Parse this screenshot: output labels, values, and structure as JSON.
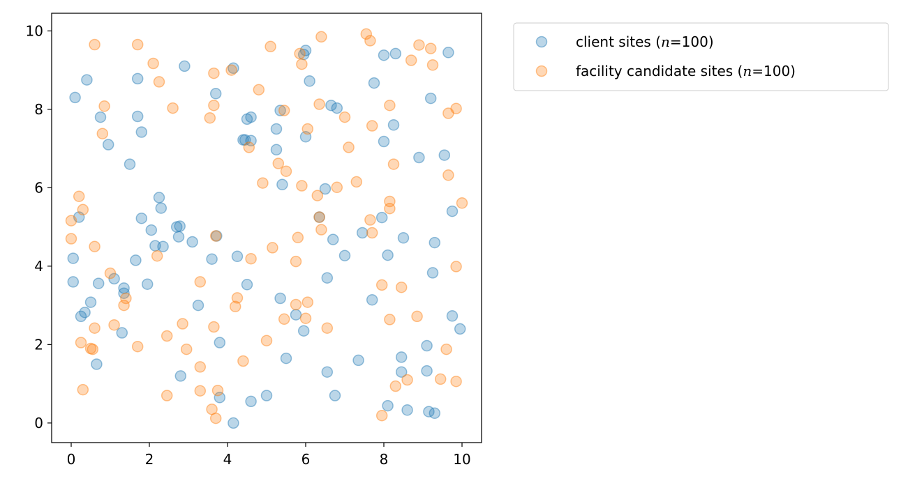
{
  "chart_data": {
    "type": "scatter",
    "xlim": [
      -0.5,
      10.5
    ],
    "ylim": [
      -0.5,
      10.45
    ],
    "xticks": [
      0,
      2,
      4,
      6,
      8,
      10
    ],
    "yticks": [
      0,
      2,
      4,
      6,
      8,
      10
    ],
    "xtick_labels": [
      "0",
      "2",
      "4",
      "6",
      "8",
      "10"
    ],
    "ytick_labels": [
      "0",
      "2",
      "4",
      "6",
      "8",
      "10"
    ],
    "grid": false,
    "title": "",
    "xlabel": "",
    "ylabel": "",
    "legend_position": "outside-upper-right",
    "series": [
      {
        "name": "client sites (n=100)",
        "legend_prefix": "client sites (",
        "legend_italic": "n",
        "legend_suffix": "=100)",
        "color": "#1f77b4",
        "opacity": 0.3,
        "points": [
          [
            0.1,
            8.3
          ],
          [
            0.4,
            8.75
          ],
          [
            0.75,
            7.8
          ],
          [
            0.95,
            7.1
          ],
          [
            1.5,
            6.6
          ],
          [
            1.7,
            8.78
          ],
          [
            1.7,
            7.82
          ],
          [
            1.8,
            7.42
          ],
          [
            2.9,
            9.1
          ],
          [
            3.7,
            8.4
          ],
          [
            4.15,
            9.05
          ],
          [
            4.45,
            7.22
          ],
          [
            4.4,
            7.22
          ],
          [
            4.5,
            7.75
          ],
          [
            4.6,
            7.8
          ],
          [
            4.6,
            7.2
          ],
          [
            5.35,
            7.97
          ],
          [
            5.25,
            7.5
          ],
          [
            5.25,
            6.97
          ],
          [
            5.4,
            6.08
          ],
          [
            5.95,
            9.4
          ],
          [
            6.0,
            9.5
          ],
          [
            6.1,
            8.72
          ],
          [
            6.0,
            7.3
          ],
          [
            6.65,
            8.1
          ],
          [
            6.8,
            8.03
          ],
          [
            6.5,
            5.97
          ],
          [
            6.35,
            5.25
          ],
          [
            6.7,
            4.68
          ],
          [
            7.0,
            4.27
          ],
          [
            7.75,
            8.67
          ],
          [
            8.0,
            9.38
          ],
          [
            8.3,
            9.42
          ],
          [
            8.0,
            7.18
          ],
          [
            8.25,
            7.6
          ],
          [
            8.9,
            6.77
          ],
          [
            9.2,
            8.28
          ],
          [
            9.65,
            9.45
          ],
          [
            9.55,
            6.83
          ],
          [
            9.75,
            5.4
          ],
          [
            0.2,
            5.25
          ],
          [
            0.05,
            4.2
          ],
          [
            0.05,
            3.6
          ],
          [
            0.25,
            2.72
          ],
          [
            0.35,
            2.82
          ],
          [
            0.5,
            3.08
          ],
          [
            0.7,
            3.56
          ],
          [
            1.1,
            3.68
          ],
          [
            1.35,
            3.44
          ],
          [
            1.35,
            3.31
          ],
          [
            1.3,
            2.3
          ],
          [
            1.65,
            4.15
          ],
          [
            1.8,
            5.22
          ],
          [
            1.95,
            3.54
          ],
          [
            2.05,
            4.92
          ],
          [
            2.15,
            4.52
          ],
          [
            2.25,
            5.75
          ],
          [
            2.3,
            5.48
          ],
          [
            2.35,
            4.5
          ],
          [
            2.7,
            5.0
          ],
          [
            2.78,
            5.02
          ],
          [
            2.75,
            4.75
          ],
          [
            3.1,
            4.62
          ],
          [
            3.25,
            3.0
          ],
          [
            3.6,
            4.18
          ],
          [
            3.72,
            4.77
          ],
          [
            4.25,
            4.25
          ],
          [
            4.5,
            3.53
          ],
          [
            0.65,
            1.5
          ],
          [
            2.8,
            1.2
          ],
          [
            3.8,
            2.05
          ],
          [
            3.8,
            0.65
          ],
          [
            4.15,
            0.0
          ],
          [
            4.6,
            0.55
          ],
          [
            5.0,
            0.7
          ],
          [
            5.5,
            1.65
          ],
          [
            5.35,
            3.18
          ],
          [
            5.75,
            2.76
          ],
          [
            5.95,
            2.35
          ],
          [
            6.55,
            3.7
          ],
          [
            6.55,
            1.3
          ],
          [
            6.75,
            0.7
          ],
          [
            7.35,
            1.6
          ],
          [
            7.45,
            4.85
          ],
          [
            7.7,
            3.14
          ],
          [
            7.95,
            5.24
          ],
          [
            8.1,
            4.28
          ],
          [
            8.1,
            0.44
          ],
          [
            8.45,
            1.68
          ],
          [
            8.45,
            1.3
          ],
          [
            8.5,
            4.72
          ],
          [
            8.6,
            0.33
          ],
          [
            9.1,
            1.97
          ],
          [
            9.1,
            1.33
          ],
          [
            9.15,
            0.29
          ],
          [
            9.3,
            0.25
          ],
          [
            9.25,
            3.83
          ],
          [
            9.3,
            4.6
          ],
          [
            9.75,
            2.73
          ],
          [
            9.95,
            2.4
          ]
        ]
      },
      {
        "name": "facility candidate sites (n=100)",
        "legend_prefix": "facility candidate sites (",
        "legend_italic": "n",
        "legend_suffix": "=100)",
        "color": "#ff7f0e",
        "opacity": 0.3,
        "points": [
          [
            0.6,
            9.65
          ],
          [
            1.7,
            9.65
          ],
          [
            2.1,
            9.17
          ],
          [
            2.25,
            8.7
          ],
          [
            0.85,
            8.08
          ],
          [
            0.8,
            7.38
          ],
          [
            2.6,
            8.03
          ],
          [
            3.65,
            8.92
          ],
          [
            3.65,
            8.1
          ],
          [
            3.55,
            7.78
          ],
          [
            4.1,
            9.0
          ],
          [
            4.8,
            8.5
          ],
          [
            5.1,
            9.6
          ],
          [
            5.45,
            7.97
          ],
          [
            4.55,
            7.03
          ],
          [
            5.3,
            6.62
          ],
          [
            5.5,
            6.42
          ],
          [
            4.9,
            6.12
          ],
          [
            5.85,
            9.42
          ],
          [
            5.9,
            9.15
          ],
          [
            6.4,
            9.85
          ],
          [
            6.35,
            8.13
          ],
          [
            6.05,
            7.5
          ],
          [
            5.9,
            6.05
          ],
          [
            6.3,
            5.8
          ],
          [
            6.35,
            5.25
          ],
          [
            6.4,
            4.93
          ],
          [
            5.8,
            4.73
          ],
          [
            5.15,
            4.47
          ],
          [
            4.6,
            4.19
          ],
          [
            6.8,
            6.01
          ],
          [
            7.0,
            7.8
          ],
          [
            7.1,
            7.03
          ],
          [
            7.3,
            6.15
          ],
          [
            7.55,
            9.92
          ],
          [
            7.65,
            9.75
          ],
          [
            7.7,
            7.58
          ],
          [
            7.65,
            5.18
          ],
          [
            7.7,
            4.85
          ],
          [
            8.15,
            8.1
          ],
          [
            8.25,
            6.6
          ],
          [
            8.15,
            5.65
          ],
          [
            8.15,
            5.47
          ],
          [
            8.7,
            9.25
          ],
          [
            8.9,
            9.64
          ],
          [
            9.2,
            9.55
          ],
          [
            9.25,
            9.13
          ],
          [
            9.65,
            7.9
          ],
          [
            9.85,
            8.02
          ],
          [
            9.65,
            6.32
          ],
          [
            10.0,
            5.61
          ],
          [
            9.85,
            3.99
          ],
          [
            0.0,
            5.16
          ],
          [
            0.0,
            4.7
          ],
          [
            0.2,
            5.78
          ],
          [
            0.3,
            5.44
          ],
          [
            0.6,
            4.5
          ],
          [
            1.0,
            3.82
          ],
          [
            1.35,
            3.0
          ],
          [
            1.4,
            3.18
          ],
          [
            2.2,
            4.26
          ],
          [
            3.3,
            3.6
          ],
          [
            3.7,
            4.77
          ],
          [
            4.2,
            2.97
          ],
          [
            4.25,
            3.19
          ],
          [
            3.65,
            2.45
          ],
          [
            2.85,
            2.53
          ],
          [
            2.45,
            2.22
          ],
          [
            2.95,
            1.88
          ],
          [
            3.3,
            1.43
          ],
          [
            3.3,
            0.82
          ],
          [
            3.75,
            0.83
          ],
          [
            3.6,
            0.35
          ],
          [
            3.7,
            0.12
          ],
          [
            2.45,
            0.7
          ],
          [
            1.7,
            1.95
          ],
          [
            1.1,
            2.5
          ],
          [
            0.6,
            2.42
          ],
          [
            0.25,
            2.05
          ],
          [
            0.5,
            1.9
          ],
          [
            0.55,
            1.88
          ],
          [
            0.3,
            0.85
          ],
          [
            4.4,
            1.58
          ],
          [
            5.0,
            2.1
          ],
          [
            5.45,
            2.65
          ],
          [
            5.75,
            3.02
          ],
          [
            6.05,
            3.08
          ],
          [
            6.0,
            2.67
          ],
          [
            6.55,
            2.42
          ],
          [
            5.75,
            4.12
          ],
          [
            7.95,
            3.52
          ],
          [
            8.45,
            3.46
          ],
          [
            8.15,
            2.64
          ],
          [
            8.85,
            2.72
          ],
          [
            9.6,
            1.88
          ],
          [
            9.45,
            1.12
          ],
          [
            9.85,
            1.06
          ],
          [
            8.6,
            1.1
          ],
          [
            8.3,
            0.94
          ],
          [
            7.95,
            0.19
          ]
        ]
      }
    ]
  }
}
